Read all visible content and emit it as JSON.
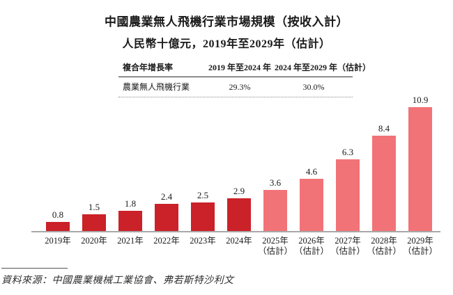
{
  "title": "中國農業無人飛機行業市場規模（按收入計）",
  "subtitle": "人民幣十億元，2019年至2029年（估計）",
  "cagr_table": {
    "headers": [
      "複合年增長率",
      "2019 年至2024 年",
      "2024 年至2029 年（估計）"
    ],
    "rows": [
      [
        "農業無人飛機行業",
        "29.3%",
        "30.0%"
      ]
    ]
  },
  "chart_data": {
    "type": "bar",
    "title": "中國農業無人飛機行業市場規模（按收入計）",
    "unit": "人民幣十億元",
    "categories": [
      "2019年",
      "2020年",
      "2021年",
      "2022年",
      "2023年",
      "2024年",
      "2025年（估計）",
      "2026年（估計）",
      "2027年（估計）",
      "2028年（估計）",
      "2029年（估計）"
    ],
    "values": [
      0.8,
      1.5,
      1.8,
      2.4,
      2.5,
      2.9,
      3.6,
      4.6,
      6.3,
      8.4,
      10.9
    ],
    "estimate_from_index": 6,
    "estimate_note": "（估計）",
    "ylim": [
      0,
      11
    ],
    "grid": false,
    "legend": "none",
    "value_labels": true
  },
  "colors": {
    "bar_actual": "#CB2128",
    "bar_estimate": "#F27377",
    "axis": "#A8A8A8"
  },
  "source": "資料來源：中國農業機械工業協會、弗若斯特沙利文"
}
